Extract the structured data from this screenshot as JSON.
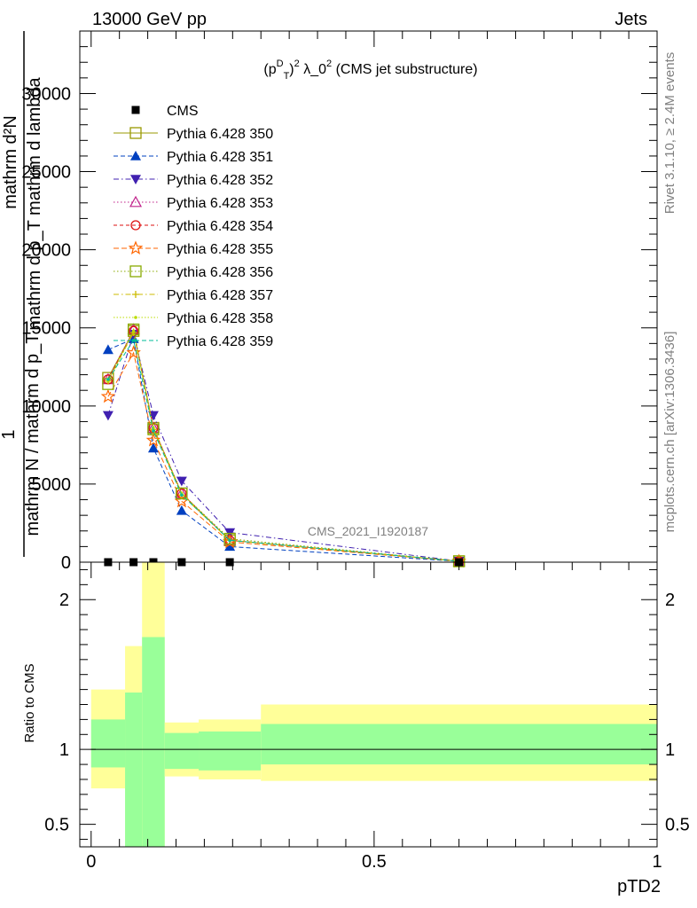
{
  "header": {
    "left": "13000 GeV pp",
    "right": "Jets",
    "subtitle": "(p_T^D)^2 λ_0^2 (CMS jet substructure)",
    "rivet": "Rivet 3.1.10, ≥ 2.4M events",
    "mcplots": "mcplots.cern.ch [arXiv:1306.3436]",
    "analysis": "CMS_2021_I1920187"
  },
  "colors": {
    "cms": "#000000",
    "band_inner": "#99ff99",
    "band_outer": "#ffff99"
  },
  "chart_data": [
    {
      "type": "line",
      "panel": "main",
      "ylabel_numerator": "1",
      "ylabel_lines": [
        "mathrm d²N",
        "mathrm d p_T mathrm d lambda"
      ],
      "ylabel_denominator": "mathrm N / mathrm d p_T",
      "xlim": [
        -0.02,
        1.0
      ],
      "ylim": [
        0,
        34000
      ],
      "yticks": [
        0,
        5000,
        10000,
        15000,
        20000,
        25000,
        30000
      ],
      "ytick_labels": [
        "0",
        "5000",
        "10000",
        "15000",
        "20000",
        "25000",
        "30000"
      ],
      "x": [
        0.03,
        0.075,
        0.11,
        0.16,
        0.245,
        0.65
      ],
      "series": [
        {
          "name": "CMS",
          "marker": "square-filled",
          "dash": "",
          "color": "#000000",
          "values": [
            0,
            0,
            0,
            0,
            0,
            0
          ]
        },
        {
          "name": "Pythia 6.428 350",
          "marker": "square-open",
          "dash": "",
          "color": "#999900",
          "values": [
            11800,
            14800,
            8600,
            4400,
            1400,
            60
          ]
        },
        {
          "name": "Pythia 6.428 351",
          "marker": "triangle-up-filled",
          "dash": "5,3",
          "color": "#0040c0",
          "values": [
            13600,
            14300,
            7300,
            3300,
            1000,
            50
          ]
        },
        {
          "name": "Pythia 6.428 352",
          "marker": "triangle-down-filled",
          "dash": "6,3,1.5,3",
          "color": "#4020b0",
          "values": [
            9400,
            14600,
            9400,
            5200,
            1900,
            70
          ]
        },
        {
          "name": "Pythia 6.428 353",
          "marker": "triangle-up-open",
          "dash": "1.5,2.5",
          "color": "#c0208a",
          "values": [
            11700,
            14900,
            8600,
            4400,
            1400,
            60
          ]
        },
        {
          "name": "Pythia 6.428 354",
          "marker": "circle-open",
          "dash": "4,3",
          "color": "#dd1111",
          "values": [
            11700,
            14800,
            8600,
            4400,
            1400,
            60
          ]
        },
        {
          "name": "Pythia 6.428 355",
          "marker": "star-open",
          "dash": "6,3",
          "color": "#ff6600",
          "values": [
            10600,
            13400,
            7800,
            3900,
            1300,
            55
          ]
        },
        {
          "name": "Pythia 6.428 356",
          "marker": "square-open",
          "dash": "1.5,2.5",
          "color": "#88aa00",
          "values": [
            11400,
            14900,
            8500,
            4400,
            1500,
            60
          ]
        },
        {
          "name": "Pythia 6.428 357",
          "marker": "plus",
          "dash": "6,3,1.5,3",
          "color": "#ccbb00",
          "values": [
            11600,
            14700,
            8500,
            4300,
            1400,
            60
          ]
        },
        {
          "name": "Pythia 6.428 358",
          "marker": "dot",
          "dash": "1.5,2",
          "color": "#bbdd00",
          "values": [
            11600,
            14800,
            8600,
            4400,
            1400,
            60
          ]
        },
        {
          "name": "Pythia 6.428 359",
          "marker": "dot",
          "dash": "5,3",
          "color": "#00bb99",
          "values": [
            11700,
            14200,
            8400,
            4300,
            1400,
            60
          ]
        }
      ]
    },
    {
      "type": "area",
      "panel": "ratio",
      "xlabel": "pTD2",
      "ylabel": "Ratio to CMS",
      "xlim": [
        -0.02,
        1.0
      ],
      "ylim": [
        0.35,
        2.25
      ],
      "xticks": [
        0,
        0.5,
        1
      ],
      "xtick_labels": [
        "0",
        "0.5",
        "1"
      ],
      "yticks": [
        0.5,
        1,
        2
      ],
      "ytick_labels": [
        "0.5",
        "1",
        "2"
      ],
      "bins": [
        [
          0.0,
          0.06
        ],
        [
          0.06,
          0.09
        ],
        [
          0.09,
          0.13
        ],
        [
          0.13,
          0.19
        ],
        [
          0.19,
          0.3
        ],
        [
          0.3,
          1.0
        ]
      ],
      "inner_band": [
        [
          0.88,
          1.2
        ],
        [
          0.32,
          1.38
        ],
        [
          0.2,
          1.75
        ],
        [
          0.87,
          1.11
        ],
        [
          0.86,
          1.12
        ],
        [
          0.9,
          1.17
        ]
      ],
      "outer_band": [
        [
          0.74,
          1.4
        ],
        [
          0.2,
          1.69
        ],
        [
          0.15,
          2.25
        ],
        [
          0.82,
          1.18
        ],
        [
          0.8,
          1.2
        ],
        [
          0.79,
          1.3
        ]
      ],
      "reference": 1
    }
  ]
}
